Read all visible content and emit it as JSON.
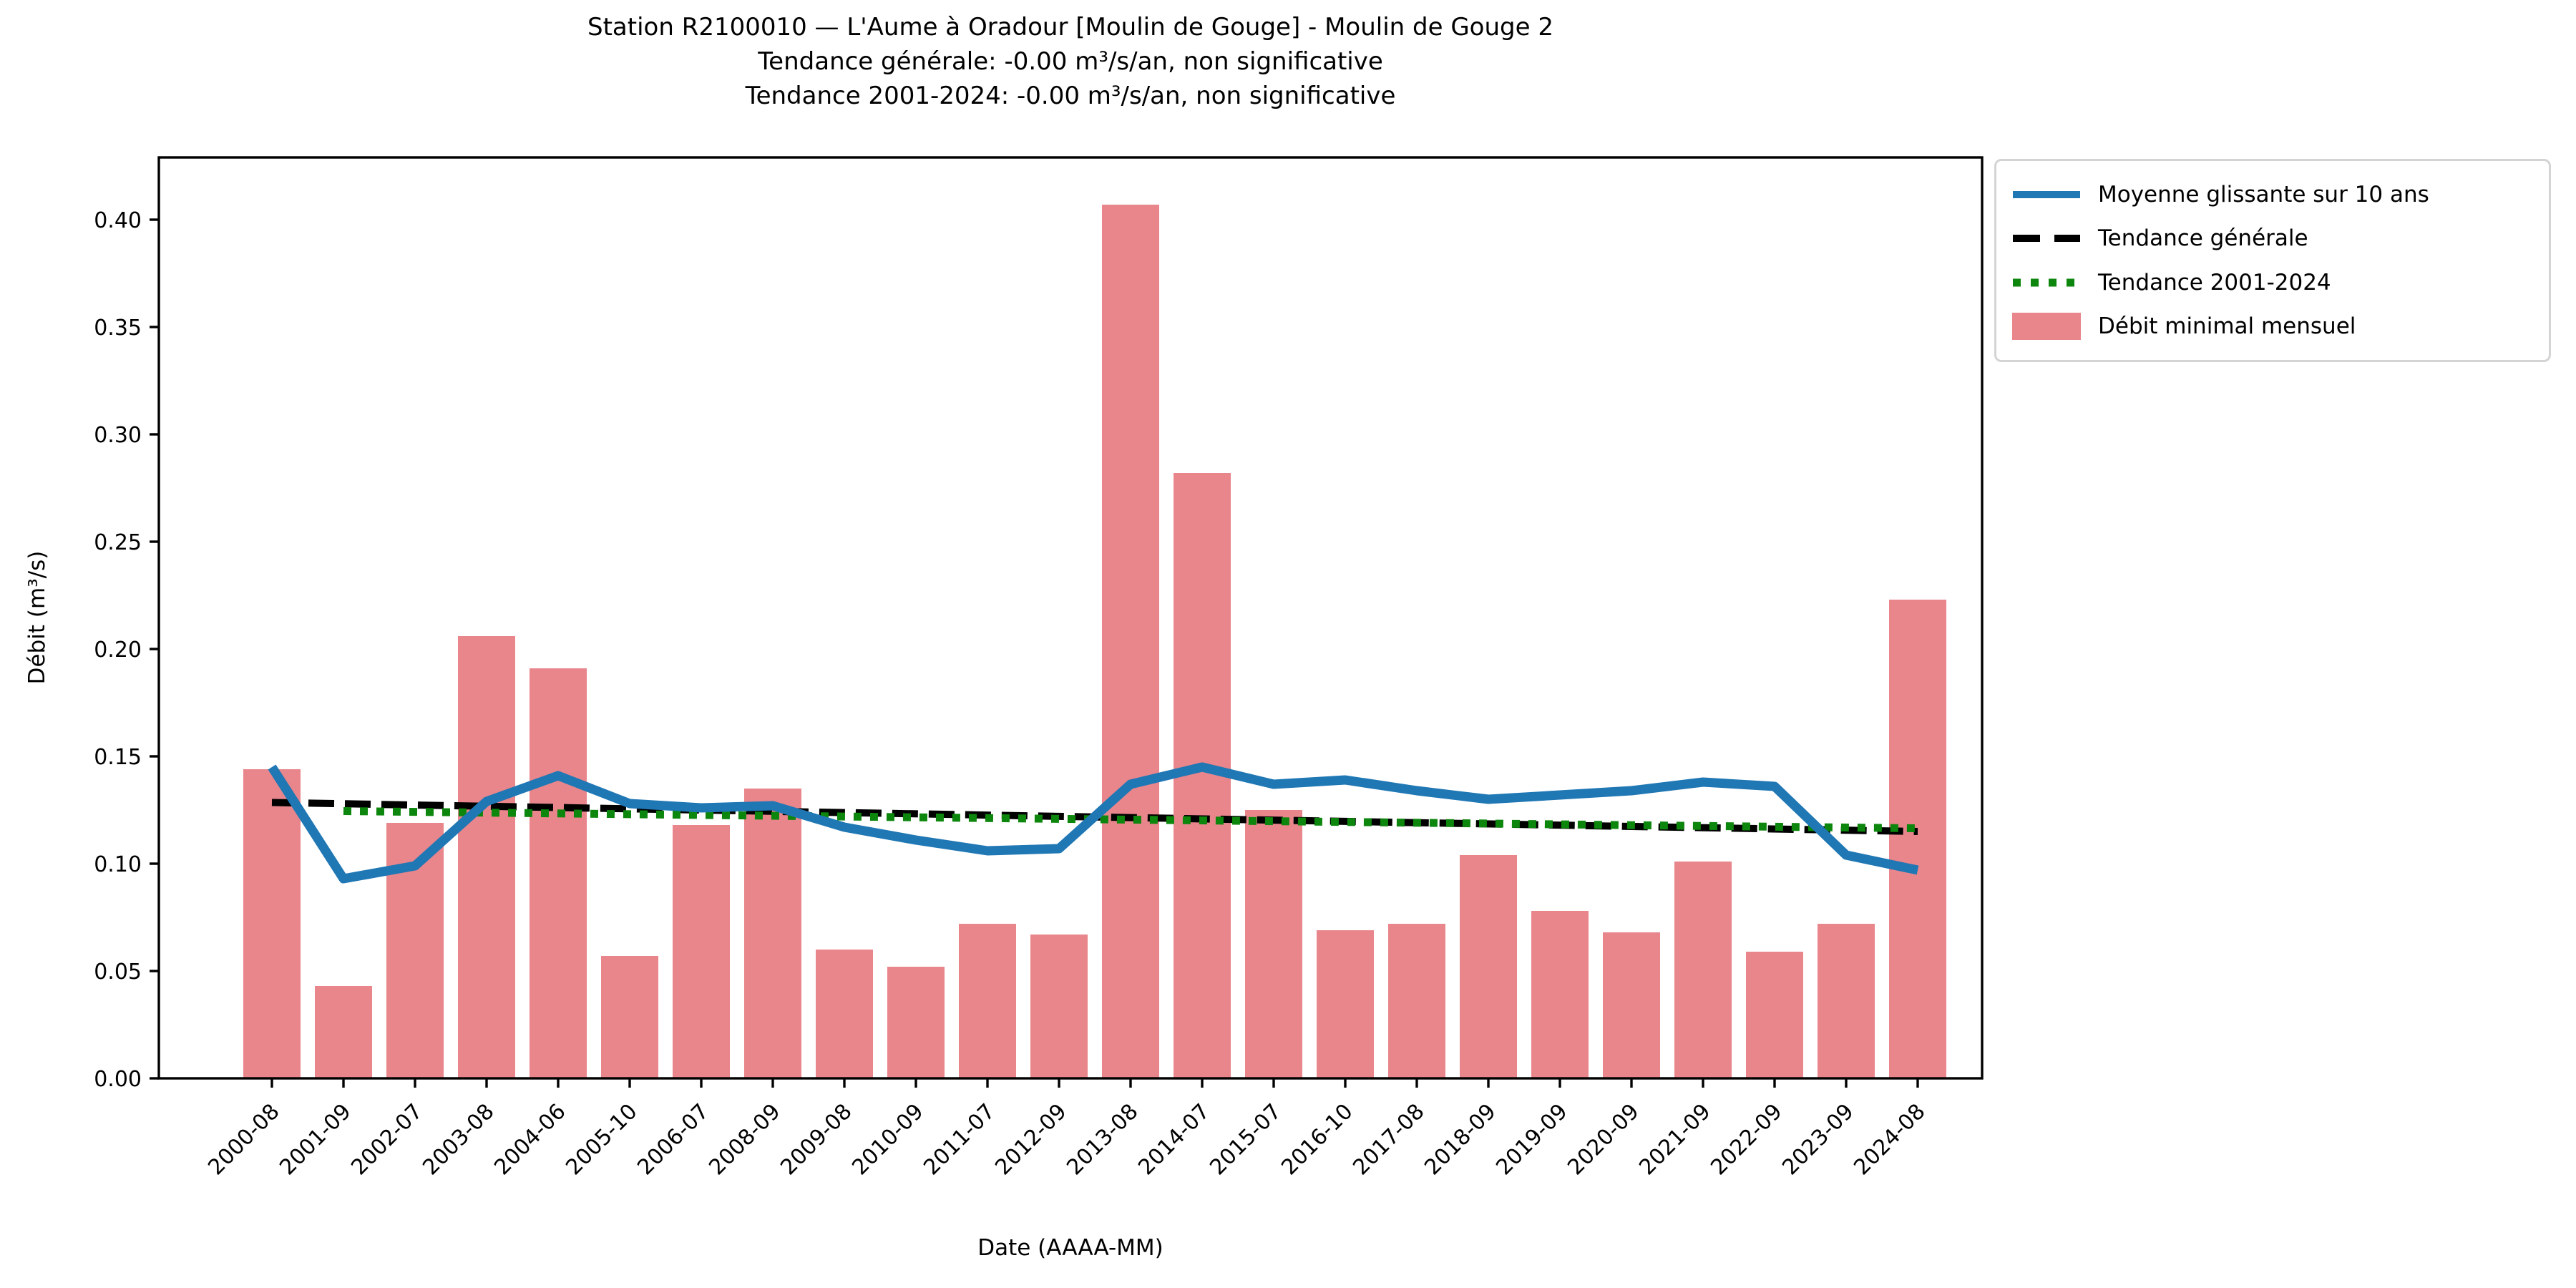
{
  "title": {
    "line1": "Station R2100010 — L'Aume à Oradour [Moulin de Gouge] - Moulin de Gouge 2",
    "line2": "Tendance générale: -0.00 m³/s/an, non significative",
    "line3": "Tendance 2001-2024: -0.00 m³/s/an, non significative"
  },
  "axes": {
    "xlabel": "Date (AAAA-MM)",
    "ylabel": "Débit (m³/s)"
  },
  "legend": {
    "items": [
      {
        "label": "Moyenne glissante sur 10 ans",
        "style": "solid",
        "color": "#1f77b4"
      },
      {
        "label": "Tendance générale",
        "style": "dashed",
        "color": "#000000"
      },
      {
        "label": "Tendance 2001-2024",
        "style": "dotted",
        "color": "#0c860c"
      },
      {
        "label": "Débit minimal mensuel",
        "style": "patch",
        "color": "#e8868c"
      }
    ]
  },
  "chart_data": {
    "type": "bar",
    "title": "Station R2100010 — L'Aume à Oradour [Moulin de Gouge] - Moulin de Gouge 2",
    "xlabel": "Date (AAAA-MM)",
    "ylabel": "Débit (m³/s)",
    "ylim": [
      0.0,
      0.429
    ],
    "yticks": [
      0.0,
      0.05,
      0.1,
      0.15,
      0.2,
      0.25,
      0.3,
      0.35,
      0.4
    ],
    "grid": false,
    "legend_position": "outside-upper-right",
    "categories": [
      "2000-08",
      "2001-09",
      "2002-07",
      "2003-08",
      "2004-06",
      "2005-10",
      "2006-07",
      "2008-09",
      "2009-08",
      "2010-09",
      "2011-07",
      "2012-09",
      "2013-08",
      "2014-07",
      "2015-07",
      "2016-10",
      "2017-08",
      "2018-09",
      "2019-09",
      "2020-09",
      "2021-09",
      "2022-09",
      "2023-09",
      "2024-08"
    ],
    "series": [
      {
        "name": "Débit minimal mensuel",
        "type": "bar",
        "color": "#e8868c",
        "values": [
          0.144,
          0.043,
          0.119,
          0.206,
          0.191,
          0.057,
          0.118,
          0.135,
          0.06,
          0.052,
          0.072,
          0.067,
          0.407,
          0.282,
          0.125,
          0.069,
          0.072,
          0.104,
          0.078,
          0.068,
          0.101,
          0.059,
          0.072,
          0.223
        ]
      },
      {
        "name": "Moyenne glissante sur 10 ans",
        "type": "line",
        "color": "#1f77b4",
        "values": [
          0.145,
          0.093,
          0.099,
          0.129,
          0.141,
          0.128,
          0.126,
          0.127,
          0.117,
          0.111,
          0.106,
          0.107,
          0.137,
          0.145,
          0.137,
          0.139,
          0.134,
          0.13,
          0.132,
          0.134,
          0.138,
          0.136,
          0.104,
          0.097
        ]
      },
      {
        "name": "Tendance générale",
        "type": "trendline",
        "line_style": "dashed",
        "color": "#000000",
        "points": [
          {
            "category_index": 0,
            "value": 0.1285
          },
          {
            "category_index": 23,
            "value": 0.115
          }
        ]
      },
      {
        "name": "Tendance 2001-2024",
        "type": "trendline",
        "line_style": "dotted",
        "color": "#0c860c",
        "points": [
          {
            "category_index": 1,
            "value": 0.1245
          },
          {
            "category_index": 23,
            "value": 0.1165
          }
        ]
      }
    ]
  }
}
